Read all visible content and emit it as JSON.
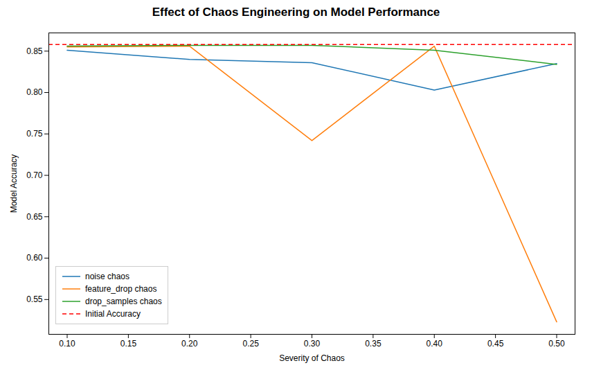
{
  "chart_data": {
    "type": "line",
    "title": "Effect of Chaos Engineering on Model Performance",
    "xlabel": "Severity of Chaos",
    "ylabel": "Model Accuracy",
    "x": [
      0.1,
      0.2,
      0.3,
      0.4,
      0.5
    ],
    "series": [
      {
        "name": "noise chaos",
        "color": "#1f77b4",
        "line_style": "solid",
        "values": [
          0.851,
          0.84,
          0.836,
          0.803,
          0.835
        ]
      },
      {
        "name": "feature_drop chaos",
        "color": "#ff7f0e",
        "line_style": "solid",
        "values": [
          0.855,
          0.856,
          0.742,
          0.856,
          0.523
        ]
      },
      {
        "name": "drop_samples chaos",
        "color": "#2ca02c",
        "line_style": "solid",
        "values": [
          0.856,
          0.857,
          0.857,
          0.851,
          0.834
        ]
      },
      {
        "name": "Initial Accuracy",
        "type": "hline",
        "color": "red",
        "line_style": "dashed",
        "y": 0.858
      }
    ],
    "xlim": [
      0.085,
      0.515
    ],
    "ylim": [
      0.508,
      0.872
    ],
    "xticks": [
      {
        "value": 0.1,
        "label": "0.10"
      },
      0.15,
      {
        "value": 0.2,
        "label": "0.20"
      },
      0.25,
      {
        "value": 0.3,
        "label": "0.30"
      },
      0.35,
      {
        "value": 0.4,
        "label": "0.40"
      },
      0.45,
      {
        "value": 0.5,
        "label": "0.50"
      }
    ],
    "yticks": [
      0.55,
      {
        "value": 0.6,
        "label": "0.60"
      },
      0.65,
      {
        "value": 0.7,
        "label": "0.70"
      },
      0.75,
      {
        "value": 0.8,
        "label": "0.80"
      },
      0.85
    ],
    "grid": false,
    "legend": "lower left"
  }
}
